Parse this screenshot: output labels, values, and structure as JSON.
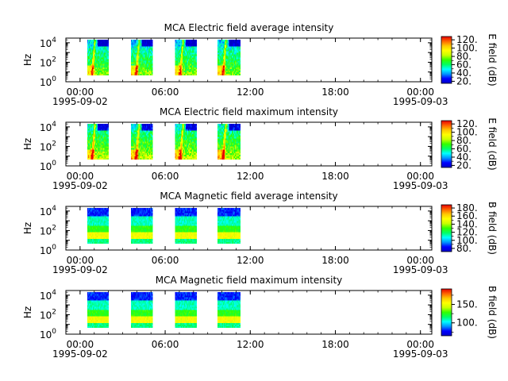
{
  "colors": {
    "rainbow_stops": [
      "#0000c8",
      "#0000ff",
      "#0096ff",
      "#00ffff",
      "#00ff64",
      "#32ff00",
      "#c8ff00",
      "#ffff00",
      "#ffc800",
      "#ff6400",
      "#e60000"
    ]
  },
  "chart_data": [
    {
      "type": "heatmap",
      "title": "MCA  Electric field average intensity",
      "ylabel": "Hz",
      "y_scale": "log",
      "ylim": [
        1,
        30000
      ],
      "y_ticks": [
        {
          "value": 1,
          "base": "10",
          "exp": "0"
        },
        {
          "value": 100,
          "base": "10",
          "exp": "2"
        },
        {
          "value": 10000,
          "base": "10",
          "exp": "4"
        }
      ],
      "x_ticks": [
        {
          "value": 0,
          "label": "00:00",
          "date": "1995-09-02"
        },
        {
          "value": 6,
          "label": "06:00",
          "date": ""
        },
        {
          "value": 12,
          "label": "12:00",
          "date": ""
        },
        {
          "value": 18,
          "label": "18:00",
          "date": ""
        },
        {
          "value": 24,
          "label": "00:00",
          "date": "1995-09-03"
        }
      ],
      "xlim": [
        -1,
        24.8
      ],
      "segments": [
        [
          0.5,
          2.0
        ],
        [
          3.6,
          5.1
        ],
        [
          6.7,
          8.2
        ],
        [
          9.7,
          11.3
        ]
      ],
      "freq_range": [
        5,
        20000
      ],
      "colorbar": {
        "label": "E field (dB)",
        "min": 15,
        "max": 128,
        "ticks": [
          20,
          40,
          60,
          80,
          100,
          120
        ],
        "tick_labels": [
          "20.",
          "40.",
          "60.",
          "80.",
          "100.",
          "120."
        ]
      },
      "pattern": "electric-avg"
    },
    {
      "type": "heatmap",
      "title": "MCA  Electric field maximum intensity",
      "ylabel": "Hz",
      "y_scale": "log",
      "ylim": [
        1,
        30000
      ],
      "y_ticks": [
        {
          "value": 1,
          "base": "10",
          "exp": "0"
        },
        {
          "value": 100,
          "base": "10",
          "exp": "2"
        },
        {
          "value": 10000,
          "base": "10",
          "exp": "4"
        }
      ],
      "x_ticks": [
        {
          "value": 0,
          "label": "00:00",
          "date": "1995-09-02"
        },
        {
          "value": 6,
          "label": "06:00",
          "date": ""
        },
        {
          "value": 12,
          "label": "12:00",
          "date": ""
        },
        {
          "value": 18,
          "label": "18:00",
          "date": ""
        },
        {
          "value": 24,
          "label": "00:00",
          "date": "1995-09-03"
        }
      ],
      "xlim": [
        -1,
        24.8
      ],
      "segments": [
        [
          0.5,
          2.0
        ],
        [
          3.6,
          5.1
        ],
        [
          6.7,
          8.2
        ],
        [
          9.7,
          11.3
        ]
      ],
      "freq_range": [
        5,
        20000
      ],
      "colorbar": {
        "label": "E field (dB)",
        "min": 15,
        "max": 128,
        "ticks": [
          20,
          40,
          60,
          80,
          100,
          120
        ],
        "tick_labels": [
          "20.",
          "40.",
          "60.",
          "80.",
          "100.",
          "120."
        ]
      },
      "pattern": "electric-max"
    },
    {
      "type": "heatmap",
      "title": "MCA  Magnetic field average intensity",
      "ylabel": "Hz",
      "y_scale": "log",
      "ylim": [
        1,
        30000
      ],
      "y_ticks": [
        {
          "value": 1,
          "base": "10",
          "exp": "0"
        },
        {
          "value": 100,
          "base": "10",
          "exp": "2"
        },
        {
          "value": 10000,
          "base": "10",
          "exp": "4"
        }
      ],
      "x_ticks": [
        {
          "value": 0,
          "label": "00:00",
          "date": "1995-09-02"
        },
        {
          "value": 6,
          "label": "06:00",
          "date": ""
        },
        {
          "value": 12,
          "label": "12:00",
          "date": ""
        },
        {
          "value": 18,
          "label": "18:00",
          "date": ""
        },
        {
          "value": 24,
          "label": "00:00",
          "date": "1995-09-03"
        }
      ],
      "xlim": [
        -1,
        24.8
      ],
      "segments": [
        [
          0.5,
          2.0
        ],
        [
          3.6,
          5.1
        ],
        [
          6.7,
          8.2
        ],
        [
          9.7,
          11.3
        ]
      ],
      "freq_range": [
        5,
        20000
      ],
      "colorbar": {
        "label": "B field (dB)",
        "min": 72,
        "max": 188,
        "ticks": [
          80,
          100,
          120,
          140,
          160,
          180
        ],
        "tick_labels": [
          "80.",
          "100.",
          "120.",
          "140.",
          "160.",
          "180."
        ]
      },
      "pattern": "magnetic"
    },
    {
      "type": "heatmap",
      "title": "MCA  Magnetic field maximum intensity",
      "ylabel": "Hz",
      "y_scale": "log",
      "ylim": [
        1,
        30000
      ],
      "y_ticks": [
        {
          "value": 1,
          "base": "10",
          "exp": "0"
        },
        {
          "value": 100,
          "base": "10",
          "exp": "2"
        },
        {
          "value": 10000,
          "base": "10",
          "exp": "4"
        }
      ],
      "x_ticks": [
        {
          "value": 0,
          "label": "00:00",
          "date": "1995-09-02"
        },
        {
          "value": 6,
          "label": "06:00",
          "date": ""
        },
        {
          "value": 12,
          "label": "12:00",
          "date": ""
        },
        {
          "value": 18,
          "label": "18:00",
          "date": ""
        },
        {
          "value": 24,
          "label": "00:00",
          "date": "1995-09-03"
        }
      ],
      "xlim": [
        -1,
        24.8
      ],
      "segments": [
        [
          0.5,
          2.0
        ],
        [
          3.6,
          5.1
        ],
        [
          6.7,
          8.2
        ],
        [
          9.7,
          11.3
        ]
      ],
      "freq_range": [
        5,
        20000
      ],
      "colorbar": {
        "label": "B field (dB)",
        "min": 65,
        "max": 192,
        "ticks": [
          100,
          150
        ],
        "tick_labels": [
          "100.",
          "150."
        ]
      },
      "pattern": "magnetic"
    }
  ]
}
